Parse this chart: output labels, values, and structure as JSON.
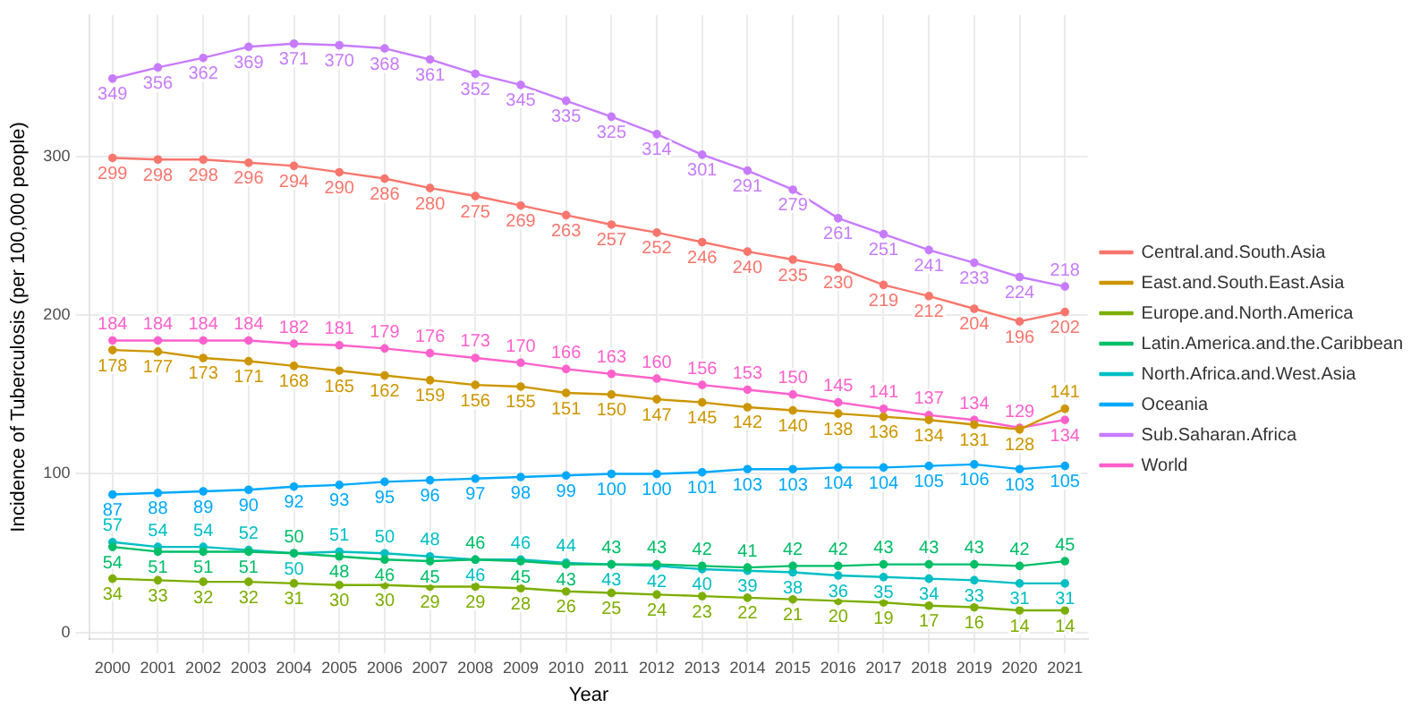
{
  "chart_data": {
    "type": "line",
    "xlabel": "Year",
    "ylabel": "Incidence of Tuberculosis (per 100,000 people)",
    "categories": [
      "2000",
      "2001",
      "2002",
      "2003",
      "2004",
      "2005",
      "2006",
      "2007",
      "2008",
      "2009",
      "2010",
      "2011",
      "2012",
      "2013",
      "2014",
      "2015",
      "2016",
      "2017",
      "2018",
      "2019",
      "2020",
      "2021"
    ],
    "series": [
      {
        "name": "Central.and.South.Asia",
        "color": "#f8766d",
        "values": [
          299,
          298,
          298,
          296,
          294,
          290,
          286,
          280,
          275,
          269,
          263,
          257,
          252,
          246,
          240,
          235,
          230,
          219,
          212,
          204,
          196,
          202
        ]
      },
      {
        "name": "East.and.South.East.Asia",
        "color": "#cd9600",
        "values": [
          178,
          177,
          173,
          171,
          168,
          165,
          162,
          159,
          156,
          155,
          151,
          150,
          147,
          145,
          142,
          140,
          138,
          136,
          134,
          131,
          128,
          141
        ]
      },
      {
        "name": "Europe.and.North.America",
        "color": "#7cae00",
        "values": [
          34,
          33,
          32,
          32,
          31,
          30,
          30,
          29,
          29,
          28,
          26,
          25,
          24,
          23,
          22,
          21,
          20,
          19,
          17,
          16,
          14,
          14
        ]
      },
      {
        "name": "Latin.America.and.the.Caribbean",
        "color": "#00be67",
        "values": [
          54,
          51,
          51,
          51,
          50,
          48,
          46,
          45,
          46,
          45,
          43,
          43,
          43,
          42,
          41,
          42,
          42,
          43,
          43,
          43,
          42,
          45
        ]
      },
      {
        "name": "North.Africa.and.West.Asia",
        "color": "#00bfc4",
        "values": [
          57,
          54,
          54,
          52,
          50,
          51,
          50,
          48,
          46,
          46,
          44,
          43,
          42,
          40,
          39,
          38,
          36,
          35,
          34,
          33,
          31,
          31
        ]
      },
      {
        "name": "Oceania",
        "color": "#00a9ff",
        "values": [
          87,
          88,
          89,
          90,
          92,
          93,
          95,
          96,
          97,
          98,
          99,
          100,
          100,
          101,
          103,
          103,
          104,
          104,
          105,
          106,
          103,
          105
        ]
      },
      {
        "name": "Sub.Saharan.Africa",
        "color": "#c77cff",
        "values": [
          349,
          356,
          362,
          369,
          371,
          370,
          368,
          361,
          352,
          345,
          335,
          325,
          314,
          301,
          291,
          279,
          261,
          251,
          241,
          233,
          224,
          218
        ]
      },
      {
        "name": "World",
        "color": "#ff61cc",
        "values": [
          184,
          184,
          184,
          184,
          182,
          181,
          179,
          176,
          173,
          170,
          166,
          163,
          160,
          156,
          153,
          150,
          145,
          141,
          137,
          134,
          129,
          134
        ]
      }
    ],
    "ylim": [
      -4,
      389
    ],
    "yticks": [
      0,
      100,
      200,
      300
    ],
    "grid": true,
    "legend": "right",
    "marker": "circle",
    "line_style": "solid",
    "data_labels": true
  }
}
